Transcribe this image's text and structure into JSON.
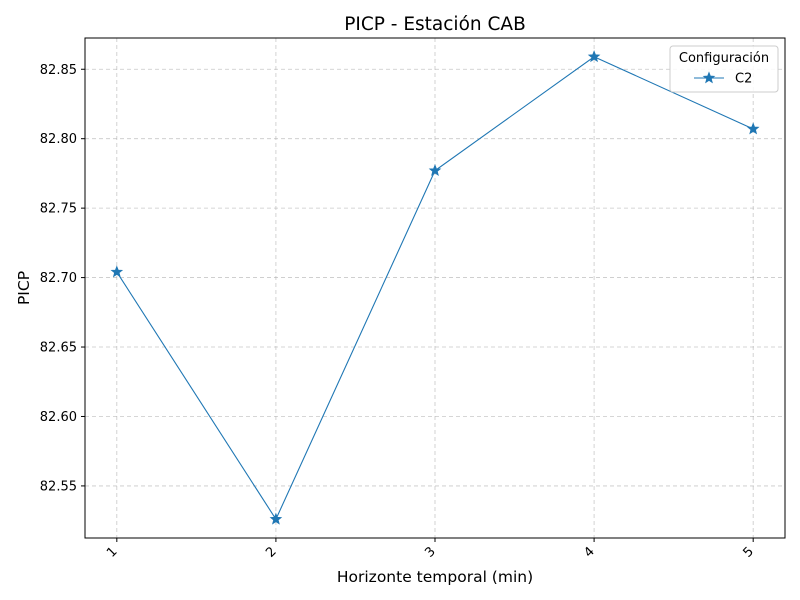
{
  "chart_data": {
    "type": "line",
    "title": "PICP - Estación CAB",
    "xlabel": "Horizonte temporal (min)",
    "ylabel": "PICP",
    "x": [
      1,
      2,
      3,
      4,
      5
    ],
    "x_tick_labels": [
      "1",
      "2",
      "3",
      "4",
      "5"
    ],
    "y_ticks": [
      82.55,
      82.6,
      82.65,
      82.7,
      82.75,
      82.8,
      82.85
    ],
    "y_tick_labels": [
      "82.55",
      "82.60",
      "82.65",
      "82.70",
      "82.75",
      "82.80",
      "82.85"
    ],
    "xlim": [
      0.8,
      5.2
    ],
    "ylim": [
      82.5125,
      82.8725
    ],
    "grid": true,
    "x_tick_rotation": "45 degrees",
    "legend": {
      "title": "Configuración",
      "placement": "top-right"
    },
    "series": [
      {
        "name": "C2",
        "values": [
          82.704,
          82.526,
          82.777,
          82.859,
          82.807
        ],
        "color": "#1f77b4",
        "marker": "star"
      }
    ]
  }
}
